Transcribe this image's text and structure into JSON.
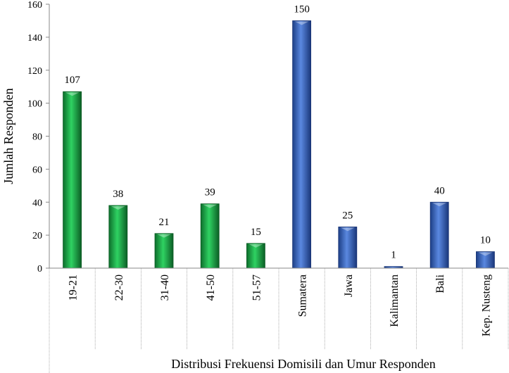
{
  "chart_data": {
    "type": "bar",
    "ylabel": "Jumlah Responden",
    "xlabel": "Distribusi Frekuensi Domisili dan Umur Responden",
    "ylim": [
      0,
      160
    ],
    "yticks": [
      0,
      20,
      40,
      60,
      80,
      100,
      120,
      140,
      160
    ],
    "categories": [
      "19-21",
      "22-30",
      "31-40",
      "41-50",
      "51-57",
      "Sumatera",
      "Jawa",
      "Kalimantan",
      "Bali",
      "Kep. Nusteng"
    ],
    "values": [
      107,
      38,
      21,
      39,
      15,
      150,
      25,
      1,
      40,
      10
    ],
    "bar_colors": [
      "#1faa4a",
      "#1faa4a",
      "#1faa4a",
      "#1faa4a",
      "#1faa4a",
      "#3b67c0",
      "#3b67c0",
      "#3b67c0",
      "#3b67c0",
      "#3b67c0"
    ],
    "data_labels": true,
    "grid": false
  }
}
